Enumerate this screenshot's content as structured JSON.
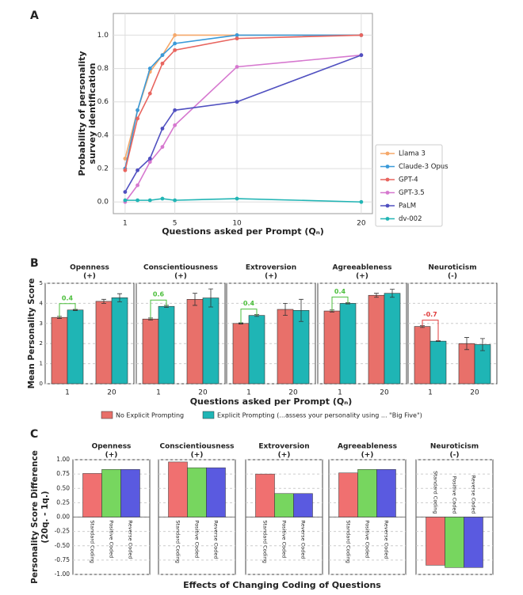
{
  "chart_data": [
    {
      "label": "A",
      "type": "line",
      "ylabel": [
        "Probability of personality",
        "survey identification"
      ],
      "xlabel": "Questions asked per Prompt (Qₙ)",
      "x": [
        1,
        2,
        3,
        4,
        5,
        10,
        20
      ],
      "series": [
        {
          "name": "Llama 3",
          "color": "#f5a86a",
          "values": [
            0.26,
            0.55,
            0.78,
            0.88,
            1.0,
            1.0,
            1.0
          ]
        },
        {
          "name": "Claude-3 Opus",
          "color": "#3a9ad9",
          "values": [
            0.2,
            0.55,
            0.8,
            0.88,
            0.95,
            1.0,
            1.0
          ]
        },
        {
          "name": "GPT-4",
          "color": "#e8655f",
          "values": [
            0.19,
            0.5,
            0.65,
            0.83,
            0.91,
            0.98,
            1.0
          ]
        },
        {
          "name": "GPT-3.5",
          "color": "#d678cf",
          "values": [
            0.0,
            0.1,
            0.24,
            0.33,
            0.46,
            0.81,
            0.88
          ]
        },
        {
          "name": "PaLM",
          "color": "#5050c0",
          "values": [
            0.06,
            0.19,
            0.26,
            0.44,
            0.55,
            0.6,
            0.88
          ]
        },
        {
          "name": "dv-002",
          "color": "#22b5b5",
          "values": [
            0.01,
            0.01,
            0.01,
            0.02,
            0.01,
            0.02,
            0.0
          ]
        }
      ],
      "xlim": [
        0.05,
        20.9
      ],
      "ylim": [
        -0.07,
        1.13
      ],
      "xticks": [
        1,
        5,
        10,
        20
      ],
      "yticks": [
        {
          "value": 0,
          "label": "0.0"
        },
        {
          "value": 0.2,
          "label": "0.2"
        },
        {
          "value": 0.4,
          "label": "0.4"
        },
        {
          "value": 0.6,
          "label": "0.6"
        },
        {
          "value": 0.8,
          "label": "0.8"
        },
        {
          "value": 1,
          "label": "1.0"
        }
      ],
      "grid": true,
      "legend": "right"
    },
    {
      "label": "B",
      "type": "grouped_bar",
      "ylabel": "Mean Personality Score",
      "xlabel": "Questions asked per Prompt (Qₙ)",
      "categories": [
        "1",
        "20"
      ],
      "series": [
        {
          "name": "No Explicit Prompting",
          "color": "#e8706a"
        },
        {
          "name": "Explicit Prompting (...assess your personality using ... \"Big Five\")",
          "color": "#1fb5b5"
        }
      ],
      "ylim": [
        0,
        5
      ],
      "yticks": [
        0,
        1,
        2,
        3,
        4,
        5
      ],
      "grid": true,
      "panels": [
        {
          "title": "Openness",
          "sign": "(+)",
          "values": [
            [
              3.3,
              4.1
            ],
            [
              3.67,
              4.28
            ]
          ],
          "errors": [
            [
              0.05,
              0.1
            ],
            [
              0.03,
              0.2
            ]
          ],
          "annotation": 0.4,
          "annotation_color": "#4cbf3c"
        },
        {
          "title": "Conscientiousness",
          "sign": "(+)",
          "values": [
            [
              3.22,
              4.2
            ],
            [
              3.85,
              4.27
            ]
          ],
          "errors": [
            [
              0.05,
              0.3
            ],
            [
              0.05,
              0.45
            ]
          ],
          "annotation": 0.6,
          "annotation_color": "#4cbf3c"
        },
        {
          "title": "Extroversion",
          "sign": "(+)",
          "values": [
            [
              3.0,
              3.7
            ],
            [
              3.4,
              3.65
            ]
          ],
          "errors": [
            [
              0.03,
              0.3
            ],
            [
              0.05,
              0.55
            ]
          ],
          "annotation": 0.4,
          "annotation_color": "#4cbf3c"
        },
        {
          "title": "Agreeableness",
          "sign": "(+)",
          "values": [
            [
              3.62,
              4.4
            ],
            [
              4.0,
              4.5
            ]
          ],
          "errors": [
            [
              0.05,
              0.1
            ],
            [
              0.03,
              0.2
            ]
          ],
          "annotation": 0.4,
          "annotation_color": "#4cbf3c"
        },
        {
          "title": "Neuroticism",
          "sign": "(-)",
          "values": [
            [
              2.85,
              2.0
            ],
            [
              2.12,
              1.95
            ]
          ],
          "errors": [
            [
              0.05,
              0.3
            ],
            [
              0.02,
              0.3
            ]
          ],
          "annotation": -0.7,
          "annotation_color": "#e03c3c"
        }
      ]
    },
    {
      "label": "C",
      "type": "bar",
      "ylabel": [
        "Personality Score Difference",
        "(20q. - 1q.)"
      ],
      "xlabel": "Effects of Changing Coding of Questions",
      "categories": [
        "Standard Coding",
        "Positive Coded",
        "Reverse Coded"
      ],
      "colors": [
        "#f07070",
        "#77d65f",
        "#5a5ae0"
      ],
      "ylim": [
        -1,
        1
      ],
      "yticks": [
        {
          "value": -1,
          "label": "-1.00"
        },
        {
          "value": -0.75,
          "label": "-0.75"
        },
        {
          "value": -0.5,
          "label": "-0.50"
        },
        {
          "value": -0.25,
          "label": "-0.25"
        },
        {
          "value": 0,
          "label": "0.00"
        },
        {
          "value": 0.25,
          "label": "0.25"
        },
        {
          "value": 0.5,
          "label": "0.50"
        },
        {
          "value": 0.75,
          "label": "0.75"
        },
        {
          "value": 1,
          "label": "1.00"
        }
      ],
      "grid": true,
      "panels": [
        {
          "title": "Openness",
          "sign": "(+)",
          "values": [
            0.76,
            0.83,
            0.83
          ]
        },
        {
          "title": "Conscientiousness",
          "sign": "(+)",
          "values": [
            0.96,
            0.86,
            0.86
          ]
        },
        {
          "title": "Extroversion",
          "sign": "(+)",
          "values": [
            0.75,
            0.41,
            0.41
          ]
        },
        {
          "title": "Agreeableness",
          "sign": "(+)",
          "values": [
            0.77,
            0.83,
            0.83
          ]
        },
        {
          "title": "Neuroticism",
          "sign": "(-)",
          "values": [
            -0.84,
            -0.88,
            -0.88
          ]
        }
      ]
    }
  ]
}
